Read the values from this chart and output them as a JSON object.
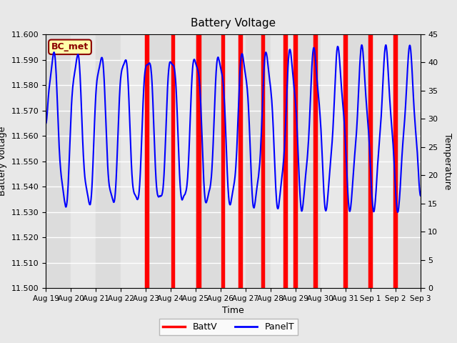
{
  "title": "Battery Voltage",
  "xlabel": "Time",
  "ylabel_left": "Battery Voltage",
  "ylabel_right": "Temperature",
  "ylim_left": [
    11.5,
    11.6
  ],
  "ylim_right": [
    0,
    45
  ],
  "yticks_left": [
    11.5,
    11.51,
    11.52,
    11.53,
    11.54,
    11.55,
    11.56,
    11.57,
    11.58,
    11.59,
    11.6
  ],
  "yticks_right": [
    0,
    5,
    10,
    15,
    20,
    25,
    30,
    35,
    40,
    45
  ],
  "xtick_labels": [
    "Aug 19",
    "Aug 20",
    "Aug 21",
    "Aug 22",
    "Aug 23",
    "Aug 24",
    "Aug 25",
    "Aug 26",
    "Aug 27",
    "Aug 28",
    "Aug 29",
    "Aug 30",
    "Aug 31",
    "Sep 1",
    "Sep 2",
    "Sep 3"
  ],
  "xtick_positions": [
    0,
    1,
    2,
    3,
    4,
    5,
    6,
    7,
    8,
    9,
    10,
    11,
    12,
    13,
    14,
    15
  ],
  "bg_color": "#e8e8e8",
  "plot_bg_color": "#ebebeb",
  "legend_label_battv": "BattV",
  "legend_label_panelt": "PanelT",
  "battv_color": "red",
  "panelt_color": "blue",
  "annotation_text": "BC_met",
  "annotation_color": "#8b0000",
  "annotation_bg": "#ffffaa",
  "red_line_positions": [
    4.0,
    4.08,
    5.05,
    5.13,
    6.05,
    6.12,
    6.18,
    7.05,
    7.12,
    7.75,
    7.83,
    8.65,
    8.73,
    9.55,
    9.63,
    9.95,
    10.03,
    10.75,
    10.83,
    11.95,
    12.03,
    12.95,
    13.03,
    13.95,
    14.03
  ],
  "red_linewidth": 2.5,
  "panelt_linewidth": 1.5,
  "num_days": 15
}
